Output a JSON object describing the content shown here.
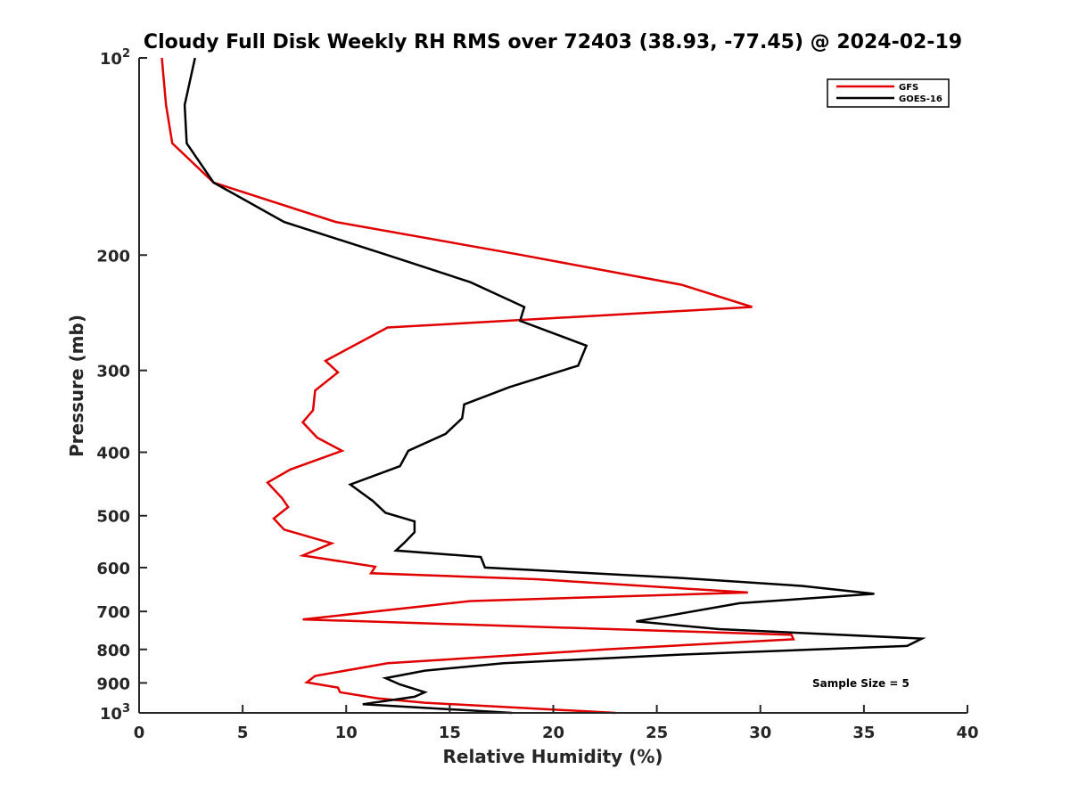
{
  "chart_data": {
    "type": "line",
    "title": "Cloudy Full Disk Weekly RH RMS over 72403 (38.93, -77.45) @ 2024-02-19",
    "xlabel": "Relative Humidity (%)",
    "ylabel": "Pressure (mb)",
    "xlim": [
      0,
      40
    ],
    "ylim": [
      100,
      1000
    ],
    "y_scale": "log",
    "y_reversed": true,
    "x_ticks": [
      "0",
      "5",
      "10",
      "15",
      "20",
      "25",
      "30",
      "35",
      "40"
    ],
    "y_ticks": [
      {
        "value": 100,
        "base": "10",
        "exp": "2"
      },
      {
        "value": 200,
        "label": "200"
      },
      {
        "value": 300,
        "label": "300"
      },
      {
        "value": 400,
        "label": "400"
      },
      {
        "value": 500,
        "label": "500"
      },
      {
        "value": 600,
        "label": "600"
      },
      {
        "value": 700,
        "label": "700"
      },
      {
        "value": 800,
        "label": "800"
      },
      {
        "value": 900,
        "label": "900"
      },
      {
        "value": 1000,
        "base": "10",
        "exp": "3"
      }
    ],
    "grid": false,
    "legend_position": "top-right",
    "series": [
      {
        "name": "GFS",
        "color": "#e00000",
        "points": [
          [
            1.1,
            100
          ],
          [
            1.3,
            118
          ],
          [
            1.6,
            135
          ],
          [
            3.6,
            155
          ],
          [
            9.5,
            178
          ],
          [
            18.5,
            200
          ],
          [
            26.2,
            222
          ],
          [
            29.6,
            240
          ],
          [
            12.0,
            258
          ],
          [
            9.0,
            290
          ],
          [
            9.6,
            302
          ],
          [
            8.5,
            322
          ],
          [
            8.4,
            345
          ],
          [
            7.9,
            360
          ],
          [
            8.6,
            380
          ],
          [
            9.8,
            398
          ],
          [
            7.3,
            425
          ],
          [
            6.2,
            445
          ],
          [
            6.9,
            470
          ],
          [
            7.2,
            485
          ],
          [
            6.5,
            505
          ],
          [
            7.0,
            525
          ],
          [
            9.3,
            551
          ],
          [
            7.9,
            575
          ],
          [
            11.4,
            598
          ],
          [
            11.2,
            612
          ],
          [
            19.2,
            625
          ],
          [
            29.4,
            655
          ],
          [
            16.0,
            675
          ],
          [
            7.9,
            720
          ],
          [
            31.5,
            760
          ],
          [
            31.6,
            772
          ],
          [
            22.5,
            800
          ],
          [
            12.0,
            840
          ],
          [
            8.5,
            878
          ],
          [
            8.1,
            898
          ],
          [
            9.6,
            915
          ],
          [
            9.7,
            930
          ],
          [
            11.5,
            950
          ],
          [
            13.8,
            965
          ],
          [
            23.0,
            1000
          ]
        ]
      },
      {
        "name": "GOES-16",
        "color": "#000000",
        "points": [
          [
            2.7,
            100
          ],
          [
            2.2,
            118
          ],
          [
            2.3,
            135
          ],
          [
            3.6,
            155
          ],
          [
            7.0,
            178
          ],
          [
            12.0,
            200
          ],
          [
            16.0,
            220
          ],
          [
            18.6,
            240
          ],
          [
            18.4,
            252
          ],
          [
            21.6,
            275
          ],
          [
            21.2,
            295
          ],
          [
            17.9,
            318
          ],
          [
            15.7,
            338
          ],
          [
            15.6,
            355
          ],
          [
            14.8,
            375
          ],
          [
            13.0,
            398
          ],
          [
            12.6,
            420
          ],
          [
            10.2,
            448
          ],
          [
            11.3,
            475
          ],
          [
            11.9,
            495
          ],
          [
            13.3,
            510
          ],
          [
            13.3,
            530
          ],
          [
            12.8,
            550
          ],
          [
            12.4,
            565
          ],
          [
            16.5,
            578
          ],
          [
            16.7,
            600
          ],
          [
            26.0,
            622
          ],
          [
            32.0,
            640
          ],
          [
            35.5,
            658
          ],
          [
            29.0,
            680
          ],
          [
            24.0,
            725
          ],
          [
            28.0,
            745
          ],
          [
            37.8,
            770
          ],
          [
            37.1,
            790
          ],
          [
            26.0,
            815
          ],
          [
            17.6,
            840
          ],
          [
            13.8,
            862
          ],
          [
            11.9,
            885
          ],
          [
            12.6,
            905
          ],
          [
            13.8,
            930
          ],
          [
            13.3,
            945
          ],
          [
            10.8,
            970
          ],
          [
            18.0,
            1000
          ]
        ]
      }
    ],
    "annotation": "Sample Size = 5"
  }
}
